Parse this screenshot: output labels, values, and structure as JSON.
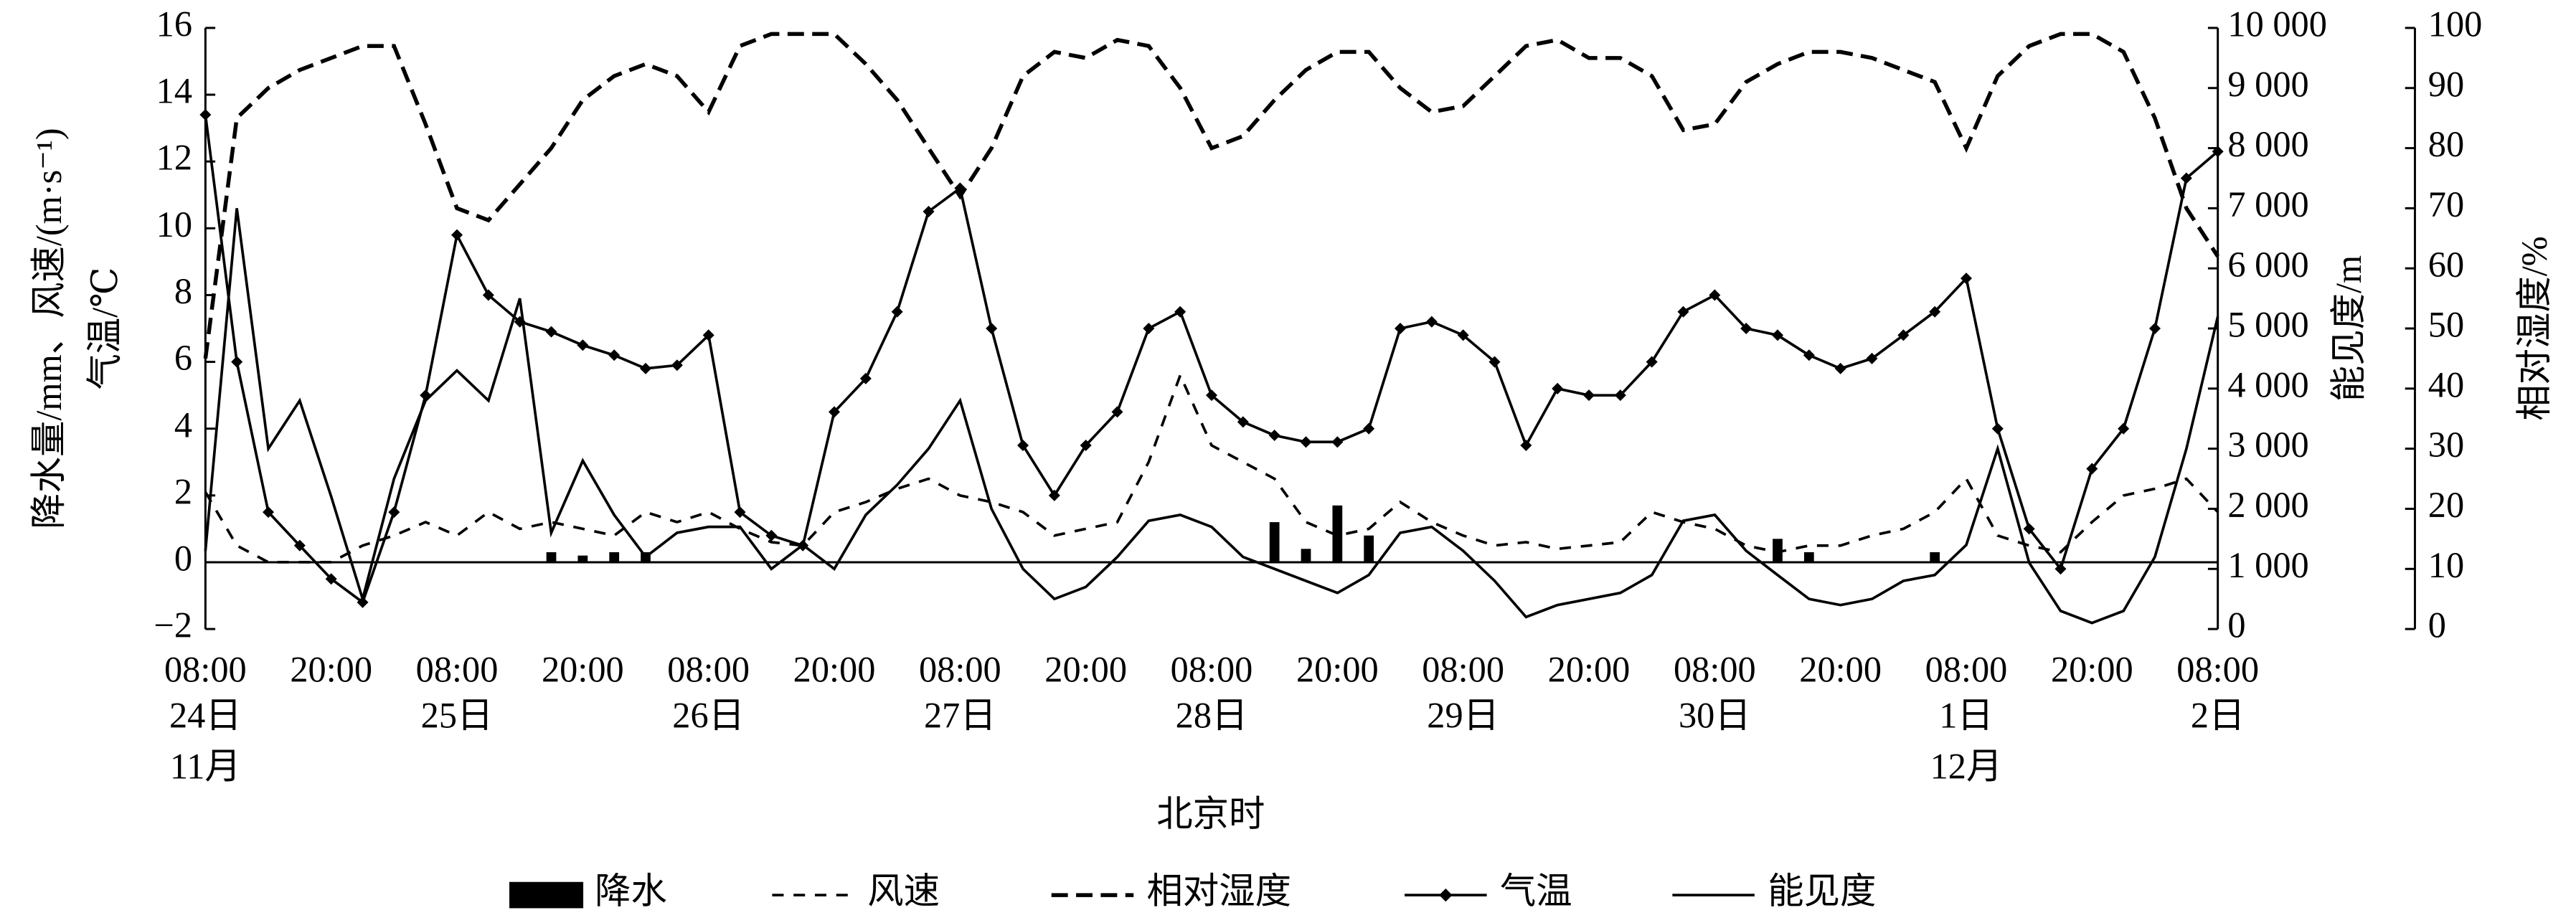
{
  "chart_data": {
    "type": "combo",
    "categories": [
      "08:00",
      null,
      null,
      null,
      "20:00",
      null,
      null,
      null,
      "08:00",
      null,
      null,
      null,
      "20:00",
      null,
      null,
      null,
      "08:00",
      null,
      null,
      null,
      "20:00",
      null,
      null,
      null,
      "08:00",
      null,
      null,
      null,
      "20:00",
      null,
      null,
      null,
      "08:00",
      null,
      null,
      null,
      "20:00",
      null,
      null,
      null,
      "08:00",
      null,
      null,
      null,
      "20:00",
      null,
      null,
      null,
      "08:00",
      null,
      null,
      null,
      "20:00",
      null,
      null,
      null,
      "08:00",
      null,
      null,
      null,
      "20:00",
      null,
      null,
      null,
      "08:00"
    ],
    "day_labels": [
      "24日",
      null,
      null,
      null,
      null,
      null,
      null,
      null,
      "25日",
      null,
      null,
      null,
      null,
      null,
      null,
      null,
      "26日",
      null,
      null,
      null,
      null,
      null,
      null,
      null,
      "27日",
      null,
      null,
      null,
      null,
      null,
      null,
      null,
      "28日",
      null,
      null,
      null,
      null,
      null,
      null,
      null,
      "29日",
      null,
      null,
      null,
      null,
      null,
      null,
      null,
      "30日",
      null,
      null,
      null,
      null,
      null,
      null,
      null,
      "1日",
      null,
      null,
      null,
      null,
      null,
      null,
      null,
      "2日"
    ],
    "month_labels": [
      "11月",
      null,
      null,
      null,
      null,
      null,
      null,
      null,
      null,
      null,
      null,
      null,
      null,
      null,
      null,
      null,
      null,
      null,
      null,
      null,
      null,
      null,
      null,
      null,
      null,
      null,
      null,
      null,
      null,
      null,
      null,
      null,
      null,
      null,
      null,
      null,
      null,
      null,
      null,
      null,
      null,
      null,
      null,
      null,
      null,
      null,
      null,
      null,
      null,
      null,
      null,
      null,
      null,
      null,
      null,
      null,
      "12月",
      null,
      null,
      null,
      null,
      null,
      null,
      null,
      null
    ],
    "xlabel": "北京时",
    "ylabel": "降水量/mm、风速/(m·s⁻¹)",
    "ylabel_2": "气温/℃",
    "y2label": "能见度/m",
    "y3label": "相对湿度/%",
    "ylim": [
      -2,
      16
    ],
    "yticks": [
      {
        "value": -2,
        "label": "−2"
      },
      0,
      2,
      4,
      6,
      8,
      10,
      12,
      14,
      16
    ],
    "y2lim": [
      0,
      10000
    ],
    "y2ticks": [
      0,
      {
        "value": 1000,
        "label": "1 000"
      },
      {
        "value": 2000,
        "label": "2 000"
      },
      {
        "value": 3000,
        "label": "3 000"
      },
      {
        "value": 4000,
        "label": "4 000"
      },
      {
        "value": 5000,
        "label": "5 000"
      },
      {
        "value": 6000,
        "label": "6 000"
      },
      {
        "value": 7000,
        "label": "7 000"
      },
      {
        "value": 8000,
        "label": "8 000"
      },
      {
        "value": 9000,
        "label": "9 000"
      },
      {
        "value": 10000,
        "label": "10 000"
      }
    ],
    "y3lim": [
      0,
      100
    ],
    "y3ticks": [
      0,
      10,
      20,
      30,
      40,
      50,
      60,
      70,
      80,
      90,
      100
    ],
    "series": [
      {
        "name": "降水",
        "type": "bar",
        "axis": "y",
        "color": "#000000",
        "values": [
          0,
          0,
          0,
          0,
          0,
          0,
          0,
          0,
          0,
          0,
          0,
          0.3,
          0.2,
          0.3,
          0.3,
          0,
          0,
          0,
          0,
          0,
          0,
          0,
          0,
          0,
          0,
          0,
          0,
          0,
          0,
          0,
          0,
          0,
          0,
          0,
          1.2,
          0.4,
          1.7,
          0.8,
          0,
          0,
          0,
          0,
          0,
          0,
          0,
          0,
          0,
          0,
          0,
          0,
          0.7,
          0.3,
          0,
          0,
          0,
          0.3,
          0,
          0,
          0,
          0,
          0,
          0,
          0,
          0,
          0
        ]
      },
      {
        "name": "风速",
        "type": "line",
        "axis": "y",
        "color": "#000000",
        "dash": "short",
        "values": [
          2.1,
          0.5,
          0,
          0,
          0,
          0.5,
          0.8,
          1.2,
          0.8,
          1.5,
          1,
          1.2,
          1,
          0.8,
          1.5,
          1.2,
          1.5,
          1,
          0.6,
          0.5,
          1.5,
          1.8,
          2.2,
          2.5,
          2,
          1.8,
          1.5,
          0.8,
          1,
          1.2,
          3,
          5.6,
          3.5,
          3,
          2.5,
          1.2,
          0.8,
          1,
          1.8,
          1.2,
          0.8,
          0.5,
          0.6,
          0.4,
          0.5,
          0.6,
          1.5,
          1.2,
          1,
          0.5,
          0.3,
          0.5,
          0.5,
          0.8,
          1,
          1.5,
          2.5,
          0.8,
          0.5,
          0.3,
          1.2,
          2,
          2.2,
          2.5,
          1.5
        ]
      },
      {
        "name": "相对湿度",
        "type": "line",
        "axis": "y3",
        "color": "#000000",
        "dash": "long",
        "values": [
          45,
          85,
          90,
          93,
          95,
          97,
          97,
          84,
          70,
          68,
          74,
          80,
          88,
          92,
          94,
          92,
          86,
          97,
          99,
          99,
          99,
          94,
          88,
          80,
          72,
          80,
          92,
          96,
          95,
          98,
          97,
          90,
          80,
          82,
          88,
          93,
          96,
          96,
          90,
          86,
          87,
          92,
          97,
          98,
          95,
          95,
          92,
          83,
          84,
          91,
          94,
          96,
          96,
          95,
          93,
          91,
          80,
          92,
          97,
          99,
          99,
          96,
          85,
          70,
          62
        ]
      },
      {
        "name": "气温",
        "type": "line",
        "axis": "y",
        "color": "#000000",
        "marker": "diamond",
        "values": [
          13.4,
          6,
          1.5,
          0.5,
          -0.5,
          -1.2,
          1.5,
          5,
          9.8,
          8,
          7.2,
          6.9,
          6.5,
          6.2,
          5.8,
          5.9,
          6.8,
          1.5,
          0.8,
          0.5,
          4.5,
          5.5,
          7.5,
          10.5,
          11.2,
          7,
          3.5,
          2,
          3.5,
          4.5,
          7,
          7.5,
          5,
          4.2,
          3.8,
          3.6,
          3.6,
          4,
          7,
          7.2,
          6.8,
          6,
          3.5,
          5.2,
          5,
          5,
          6,
          7.5,
          8,
          7,
          6.8,
          6.2,
          5.8,
          6.1,
          6.8,
          7.5,
          8.5,
          4,
          1,
          -0.2,
          2.8,
          4,
          7,
          11.5,
          12.3
        ]
      },
      {
        "name": "能见度",
        "type": "line",
        "axis": "y2",
        "color": "#000000",
        "values": [
          1300,
          7000,
          3000,
          3800,
          2200,
          500,
          2500,
          3800,
          4300,
          3800,
          5500,
          1600,
          2800,
          1900,
          1200,
          1600,
          1700,
          1700,
          1000,
          1400,
          1000,
          1900,
          2400,
          3000,
          3800,
          2000,
          1000,
          500,
          700,
          1200,
          1800,
          1900,
          1700,
          1200,
          1000,
          800,
          600,
          900,
          1600,
          1700,
          1300,
          800,
          200,
          400,
          500,
          600,
          900,
          1800,
          1900,
          1300,
          900,
          500,
          400,
          500,
          800,
          900,
          1400,
          3000,
          1100,
          300,
          100,
          300,
          1200,
          3000,
          5200
        ]
      }
    ]
  }
}
